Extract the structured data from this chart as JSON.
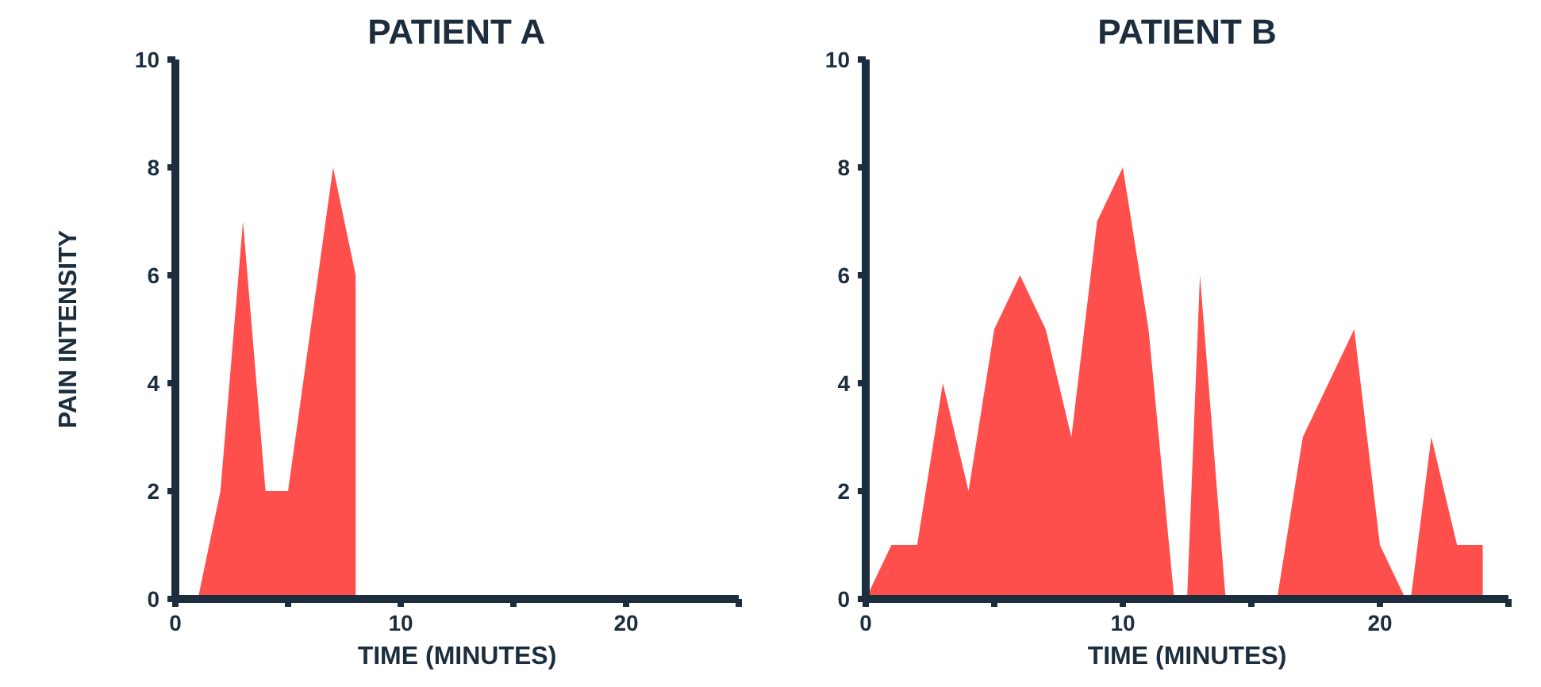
{
  "chart_data": [
    {
      "type": "area",
      "title": "PATIENT A",
      "xlabel": "TIME (MINUTES)",
      "ylabel": "PAIN INTENSITY",
      "x": [
        1,
        2,
        3,
        4,
        5,
        7,
        8
      ],
      "values": [
        0,
        2,
        7,
        2,
        2,
        8,
        6
      ],
      "color": "#ff4f4c",
      "xlim": [
        0,
        25
      ],
      "ylim": [
        0,
        10
      ],
      "xticks": [
        0,
        {
          "value": 5,
          "label": null
        },
        10,
        {
          "value": 15,
          "label": null
        },
        20,
        {
          "value": 25,
          "label": null
        }
      ],
      "yticks": [
        0,
        2,
        4,
        6,
        8,
        10
      ],
      "grid": false
    },
    {
      "type": "area",
      "title": "PATIENT B",
      "xlabel": "TIME (MINUTES)",
      "x": [
        0,
        1,
        2,
        3,
        4,
        5,
        6,
        7,
        8,
        9,
        10,
        11,
        12,
        12.5,
        13,
        14,
        16,
        17,
        19,
        20,
        21,
        21.2,
        22,
        23,
        24
      ],
      "values": [
        0,
        1,
        1,
        4,
        2,
        5,
        6,
        5,
        3,
        7,
        8,
        5,
        0,
        0,
        6,
        0,
        0,
        3,
        5,
        1,
        0,
        0,
        3,
        1,
        1
      ],
      "color": "#ff4f4c",
      "xlim": [
        0,
        25
      ],
      "ylim": [
        0,
        10
      ],
      "xticks": [
        0,
        {
          "value": 5,
          "label": null
        },
        10,
        {
          "value": 15,
          "label": null
        },
        20,
        {
          "value": 25,
          "label": null
        }
      ],
      "yticks": [
        0,
        2,
        4,
        6,
        8,
        10
      ],
      "grid": false
    }
  ]
}
